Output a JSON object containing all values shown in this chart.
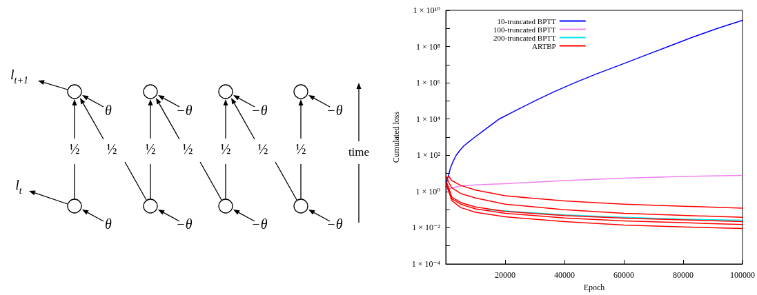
{
  "chart_data": [
    {
      "type": "other",
      "annotations": [
        "l$_{t+1}$",
        "l$_{t}$",
        "θ",
        "θ",
        "½",
        "½",
        "−θ",
        "−θ",
        "½",
        "½",
        "−θ",
        "−θ",
        "½",
        "½",
        "−θ",
        "−θ",
        "½",
        "time"
      ]
    },
    {
      "type": "line",
      "xlabel": "Epoch",
      "ylabel": "Cumulated loss",
      "log": "y",
      "grid": false,
      "legend": "top left",
      "marker": "none",
      "line_style": "solid",
      "xlim": [
        0,
        100000
      ],
      "xticks": [
        20000,
        40000,
        60000,
        80000,
        100000
      ],
      "ylim": [
        0.0001,
        10000000000
      ],
      "yticks": [
        {
          "value": 0.0001,
          "label": "1 × 10⁻⁴"
        },
        {
          "value": 0.001,
          "label": null
        },
        {
          "value": 0.01,
          "label": "1 × 10⁻²"
        },
        {
          "value": 0.1,
          "label": null
        },
        {
          "value": 1,
          "label": "1 × 10⁰"
        },
        {
          "value": 10,
          "label": null
        },
        {
          "value": 100,
          "label": "1 × 10²"
        },
        {
          "value": 1000,
          "label": null
        },
        {
          "value": 10000,
          "label": "1 × 10⁴"
        },
        {
          "value": 100000,
          "label": null
        },
        {
          "value": 1000000,
          "label": "1 × 10⁶"
        },
        {
          "value": 10000000,
          "label": null
        },
        {
          "value": 100000000,
          "label": "1 × 10⁸"
        },
        {
          "value": 1000000000,
          "label": null
        },
        {
          "value": 10000000000,
          "label": "1 × 10¹⁰"
        }
      ],
      "series": [
        {
          "name": "10-truncated BPTT",
          "color": "#0000ff",
          "x": [
            300,
            600,
            1100,
            1500,
            2000,
            2700,
            3500,
            4700,
            6000,
            7800,
            9800,
            13000,
            18000,
            24000,
            30000,
            36500,
            43400,
            51000,
            59000,
            67000,
            75000,
            83000,
            91500,
            100000
          ],
          "values": [
            3,
            5,
            10,
            18,
            30,
            55,
            100,
            180,
            320,
            560,
            1000,
            2500,
            10000,
            32000,
            100000,
            320000,
            1000000,
            3200000,
            10000000,
            32000000,
            100000000,
            320000000,
            1000000000,
            2800000000
          ]
        },
        {
          "name": "100-truncated BPTT",
          "color": "#ee82ee",
          "x": [
            300,
            1000,
            2000,
            5000,
            10000,
            20000,
            40000,
            60000,
            80000,
            100000
          ],
          "values": [
            1.3,
            1.3,
            1.6,
            2.0,
            2.3,
            2.7,
            4.0,
            5.4,
            6.8,
            7.8
          ]
        },
        {
          "name": "200-truncated BPTT",
          "color": "#00e5ee",
          "x": [
            14000,
            20000,
            40000,
            60000,
            80000,
            100000
          ],
          "values": [
            0.1,
            0.085,
            0.051,
            0.038,
            0.03,
            0.026
          ]
        },
        {
          "name": "ARTBP",
          "color": "#ff0000",
          "x": [
            300,
            1000,
            2000,
            5000,
            10000,
            20000,
            40000,
            60000,
            80000,
            100000
          ],
          "values": [
            5.0,
            7.1,
            4.0,
            2.2,
            1.2,
            0.58,
            0.3,
            0.2,
            0.155,
            0.12
          ]
        },
        {
          "color": "#ff0000",
          "x": [
            300,
            1000,
            2000,
            5000,
            10000,
            20000,
            40000,
            60000,
            80000,
            100000
          ],
          "values": [
            6.3,
            3.2,
            1.6,
            0.78,
            0.44,
            0.2,
            0.1,
            0.063,
            0.048,
            0.038
          ]
        },
        {
          "color": "#ff0000",
          "x": [
            300,
            1000,
            2000,
            5000,
            10000,
            20000,
            40000,
            60000,
            80000,
            100000
          ],
          "values": [
            3.2,
            1.6,
            0.5,
            0.25,
            0.14,
            0.079,
            0.047,
            0.034,
            0.027,
            0.022
          ]
        },
        {
          "color": "#ff0000",
          "x": [
            300,
            1000,
            2000,
            5000,
            10000,
            20000,
            40000,
            60000,
            80000,
            100000
          ],
          "values": [
            2.5,
            1.3,
            0.4,
            0.2,
            0.11,
            0.063,
            0.035,
            0.024,
            0.019,
            0.015
          ]
        },
        {
          "color": "#ff0000",
          "x": [
            300,
            1000,
            2000,
            5000,
            10000,
            20000,
            40000,
            60000,
            80000,
            100000
          ],
          "values": [
            2.0,
            1.0,
            0.32,
            0.13,
            0.071,
            0.04,
            0.022,
            0.014,
            0.011,
            0.0091
          ]
        }
      ]
    }
  ]
}
